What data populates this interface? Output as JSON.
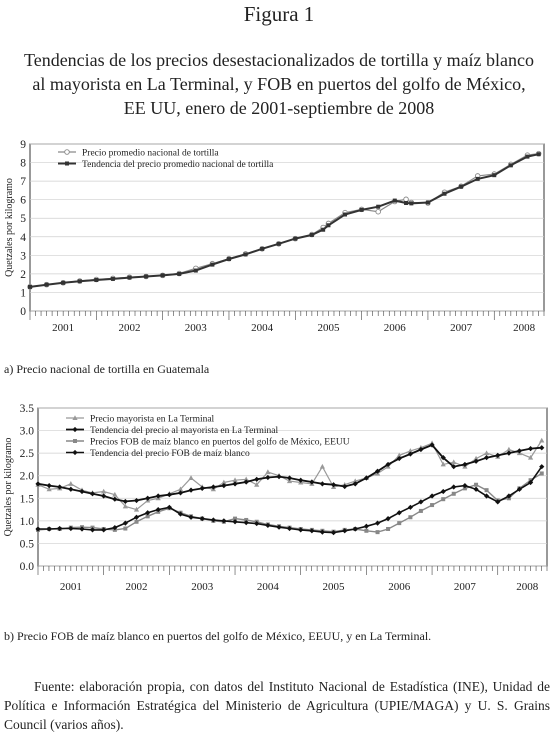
{
  "figure_label": "Figura 1",
  "title": "Tendencias de los precios desestacionalizados de tortilla y maíz blanco al mayorista en La Terminal, y FOB en puertos del golfo de México, EE UU, enero de 2001-septiembre de 2008",
  "caption_a": "a) Precio nacional de tortilla en Guatemala",
  "caption_b": "b) Precio FOB de maíz blanco en puertos del golfo de México, EEUU, y en La Terminal.",
  "source_note": "Fuente: elaboración propia, con datos del Instituto Nacional de Estadística (INE), Unidad de Política e Información Estratégica del Ministerio de Agricultura (UPIE/MAGA) y U. S. Grains Council (varios años).",
  "chart_data": [
    {
      "type": "line",
      "ylabel": "Quetzales por kilogramo",
      "ylim": [
        0,
        9
      ],
      "yticks": [
        "0",
        "1",
        "2",
        "3",
        "4",
        "5",
        "6",
        "7",
        "8",
        "9"
      ],
      "x_categories": [
        "2001",
        "2002",
        "2003",
        "2004",
        "2005",
        "2006",
        "2007",
        "2008"
      ],
      "legend_position": "top-left",
      "grid": "horizontal",
      "series": [
        {
          "name": "Precio promedio nacional de tortilla",
          "marker": "open-circle",
          "x": [
            2001.0,
            2001.25,
            2001.5,
            2001.75,
            2002.0,
            2002.25,
            2002.5,
            2002.75,
            2003.0,
            2003.25,
            2003.5,
            2003.75,
            2004.0,
            2004.25,
            2004.5,
            2004.75,
            2005.0,
            2005.25,
            2005.42,
            2005.5,
            2005.75,
            2006.0,
            2006.25,
            2006.5,
            2006.67,
            2006.75,
            2007.0,
            2007.25,
            2007.5,
            2007.75,
            2008.0,
            2008.25,
            2008.5,
            2008.67
          ],
          "y": [
            1.3,
            1.42,
            1.52,
            1.62,
            1.7,
            1.76,
            1.82,
            1.86,
            1.92,
            2.02,
            2.3,
            2.55,
            2.82,
            3.08,
            3.35,
            3.62,
            3.9,
            4.12,
            4.5,
            4.72,
            5.3,
            5.48,
            5.35,
            5.9,
            6.02,
            5.85,
            5.82,
            6.4,
            6.72,
            7.28,
            7.38,
            7.9,
            8.4,
            8.48
          ]
        },
        {
          "name": "Tendencia del precio promedio nacional de tortilla",
          "marker": "filled-square",
          "x": [
            2001.0,
            2001.25,
            2001.5,
            2001.75,
            2002.0,
            2002.25,
            2002.5,
            2002.75,
            2003.0,
            2003.25,
            2003.5,
            2003.75,
            2004.0,
            2004.25,
            2004.5,
            2004.75,
            2005.0,
            2005.25,
            2005.42,
            2005.5,
            2005.75,
            2006.0,
            2006.25,
            2006.5,
            2006.67,
            2006.75,
            2007.0,
            2007.25,
            2007.5,
            2007.75,
            2008.0,
            2008.25,
            2008.5,
            2008.67
          ],
          "y": [
            1.3,
            1.42,
            1.52,
            1.6,
            1.67,
            1.73,
            1.8,
            1.86,
            1.92,
            2.0,
            2.18,
            2.5,
            2.8,
            3.05,
            3.35,
            3.62,
            3.9,
            4.1,
            4.38,
            4.62,
            5.2,
            5.45,
            5.62,
            5.95,
            5.82,
            5.8,
            5.85,
            6.32,
            6.7,
            7.12,
            7.32,
            7.85,
            8.32,
            8.45
          ]
        }
      ]
    },
    {
      "type": "line",
      "ylabel": "Quetzales por kilogramo",
      "ylim": [
        0,
        3.5
      ],
      "yticks": [
        "0.0",
        "0.5",
        "1.0",
        "1.5",
        "2.0",
        "2.5",
        "3.0",
        "3.5"
      ],
      "x_categories": [
        "2001",
        "2002",
        "2003",
        "2004",
        "2005",
        "2006",
        "2007",
        "2008"
      ],
      "legend_position": "top-left",
      "grid": "horizontal",
      "series": [
        {
          "name": "Precio mayorista en La Terminal",
          "marker": "triangle",
          "x": [
            2001.0,
            2001.17,
            2001.33,
            2001.5,
            2001.67,
            2001.83,
            2002.0,
            2002.17,
            2002.33,
            2002.5,
            2002.67,
            2002.83,
            2003.0,
            2003.17,
            2003.33,
            2003.5,
            2003.67,
            2003.83,
            2004.0,
            2004.17,
            2004.33,
            2004.5,
            2004.67,
            2004.83,
            2005.0,
            2005.17,
            2005.33,
            2005.5,
            2005.67,
            2005.83,
            2006.0,
            2006.17,
            2006.33,
            2006.5,
            2006.67,
            2006.83,
            2007.0,
            2007.17,
            2007.33,
            2007.5,
            2007.67,
            2007.83,
            2008.0,
            2008.17,
            2008.33,
            2008.5,
            2008.67
          ],
          "y": [
            1.8,
            1.7,
            1.72,
            1.82,
            1.68,
            1.62,
            1.65,
            1.58,
            1.32,
            1.25,
            1.45,
            1.5,
            1.6,
            1.7,
            1.95,
            1.75,
            1.7,
            1.85,
            1.9,
            1.92,
            1.8,
            2.08,
            2.0,
            1.88,
            1.85,
            1.82,
            2.2,
            1.75,
            1.8,
            1.88,
            1.95,
            2.05,
            2.2,
            2.45,
            2.55,
            2.62,
            2.72,
            2.25,
            2.3,
            2.2,
            2.38,
            2.5,
            2.42,
            2.58,
            2.5,
            2.4,
            2.78
          ]
        },
        {
          "name": "Tendencia del precio al mayorista en La Terminal",
          "marker": "filled-diamond",
          "x": [
            2001.0,
            2001.17,
            2001.33,
            2001.5,
            2001.67,
            2001.83,
            2002.0,
            2002.17,
            2002.33,
            2002.5,
            2002.67,
            2002.83,
            2003.0,
            2003.17,
            2003.33,
            2003.5,
            2003.67,
            2003.83,
            2004.0,
            2004.17,
            2004.33,
            2004.5,
            2004.67,
            2004.83,
            2005.0,
            2005.17,
            2005.33,
            2005.5,
            2005.67,
            2005.83,
            2006.0,
            2006.17,
            2006.33,
            2006.5,
            2006.67,
            2006.83,
            2007.0,
            2007.17,
            2007.33,
            2007.5,
            2007.67,
            2007.83,
            2008.0,
            2008.17,
            2008.33,
            2008.5,
            2008.67
          ],
          "y": [
            1.82,
            1.78,
            1.75,
            1.7,
            1.65,
            1.6,
            1.55,
            1.48,
            1.43,
            1.45,
            1.5,
            1.55,
            1.58,
            1.62,
            1.68,
            1.72,
            1.75,
            1.78,
            1.82,
            1.86,
            1.92,
            1.96,
            1.98,
            1.95,
            1.9,
            1.86,
            1.82,
            1.8,
            1.76,
            1.82,
            1.95,
            2.1,
            2.25,
            2.38,
            2.48,
            2.58,
            2.68,
            2.4,
            2.2,
            2.25,
            2.32,
            2.4,
            2.45,
            2.5,
            2.55,
            2.6,
            2.62
          ]
        },
        {
          "name": "Precios FOB de maíz blanco en puertos del golfo de México, EEUU",
          "marker": "filled-square",
          "x": [
            2001.0,
            2001.17,
            2001.33,
            2001.5,
            2001.67,
            2001.83,
            2002.0,
            2002.17,
            2002.33,
            2002.5,
            2002.67,
            2002.83,
            2003.0,
            2003.17,
            2003.33,
            2003.5,
            2003.67,
            2003.83,
            2004.0,
            2004.17,
            2004.33,
            2004.5,
            2004.67,
            2004.83,
            2005.0,
            2005.17,
            2005.33,
            2005.5,
            2005.67,
            2005.83,
            2006.0,
            2006.17,
            2006.33,
            2006.5,
            2006.67,
            2006.83,
            2007.0,
            2007.17,
            2007.33,
            2007.5,
            2007.67,
            2007.83,
            2008.0,
            2008.17,
            2008.33,
            2008.5,
            2008.67
          ],
          "y": [
            0.8,
            0.82,
            0.82,
            0.85,
            0.86,
            0.85,
            0.82,
            0.8,
            0.83,
            0.98,
            1.1,
            1.2,
            1.28,
            1.18,
            1.1,
            1.05,
            1.0,
            0.98,
            1.05,
            1.02,
            0.98,
            0.92,
            0.88,
            0.85,
            0.82,
            0.8,
            0.78,
            0.76,
            0.8,
            0.82,
            0.78,
            0.75,
            0.82,
            0.95,
            1.08,
            1.22,
            1.35,
            1.48,
            1.6,
            1.72,
            1.8,
            1.68,
            1.45,
            1.5,
            1.72,
            1.9,
            2.05
          ]
        },
        {
          "name": "Tendencia del precio FOB de maíz blanco",
          "marker": "filled-diamond",
          "x": [
            2001.0,
            2001.17,
            2001.33,
            2001.5,
            2001.67,
            2001.83,
            2002.0,
            2002.17,
            2002.33,
            2002.5,
            2002.67,
            2002.83,
            2003.0,
            2003.17,
            2003.33,
            2003.5,
            2003.67,
            2003.83,
            2004.0,
            2004.17,
            2004.33,
            2004.5,
            2004.67,
            2004.83,
            2005.0,
            2005.17,
            2005.33,
            2005.5,
            2005.67,
            2005.83,
            2006.0,
            2006.17,
            2006.33,
            2006.5,
            2006.67,
            2006.83,
            2007.0,
            2007.17,
            2007.33,
            2007.5,
            2007.67,
            2007.83,
            2008.0,
            2008.17,
            2008.33,
            2008.5,
            2008.67
          ],
          "y": [
            0.82,
            0.82,
            0.83,
            0.83,
            0.82,
            0.8,
            0.8,
            0.85,
            0.95,
            1.08,
            1.18,
            1.25,
            1.3,
            1.15,
            1.08,
            1.05,
            1.02,
            1.0,
            0.98,
            0.96,
            0.94,
            0.9,
            0.86,
            0.83,
            0.8,
            0.78,
            0.75,
            0.74,
            0.78,
            0.82,
            0.88,
            0.95,
            1.05,
            1.18,
            1.3,
            1.42,
            1.55,
            1.65,
            1.75,
            1.78,
            1.7,
            1.55,
            1.42,
            1.55,
            1.7,
            1.85,
            2.2
          ]
        }
      ]
    }
  ]
}
